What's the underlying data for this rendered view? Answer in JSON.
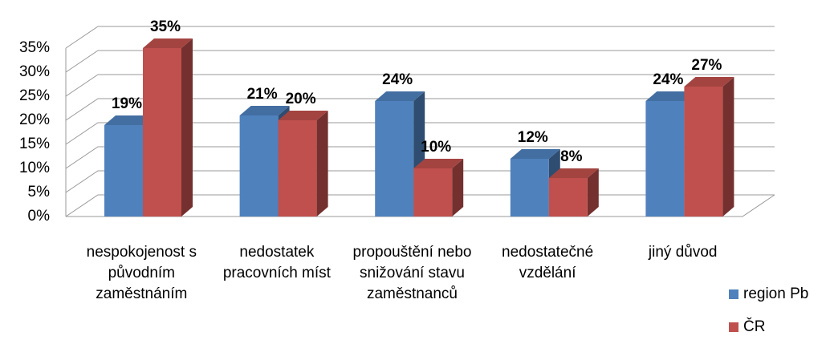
{
  "chart_data": {
    "type": "bar3d",
    "categories": [
      "nespokojenost s původním zaměstnáním",
      "nedostatek pracovních míst",
      "propouštění nebo snižování stavu zaměstnanců",
      "nedostatečné vzdělání",
      "jiný důvod"
    ],
    "series": [
      {
        "name": "region Pb",
        "color": "#4f81bd",
        "values": [
          19,
          21,
          24,
          12,
          24
        ],
        "value_labels": [
          "19%",
          "21%",
          "24%",
          "12%",
          "24%"
        ]
      },
      {
        "name": "ČR",
        "color": "#c0504d",
        "values": [
          35,
          20,
          10,
          8,
          27
        ],
        "value_labels": [
          "35%",
          "20%",
          "10%",
          "8%",
          "27%"
        ]
      }
    ],
    "ylim": [
      0,
      35
    ],
    "yticks": [
      {
        "value": 0,
        "label": "0%"
      },
      {
        "value": 5,
        "label": "5%"
      },
      {
        "value": 10,
        "label": "10%"
      },
      {
        "value": 15,
        "label": "15%"
      },
      {
        "value": 20,
        "label": "20%"
      },
      {
        "value": 25,
        "label": "25%"
      },
      {
        "value": 30,
        "label": "30%"
      },
      {
        "value": 35,
        "label": "35%"
      }
    ],
    "grid": true,
    "legend": "bottom-right"
  }
}
